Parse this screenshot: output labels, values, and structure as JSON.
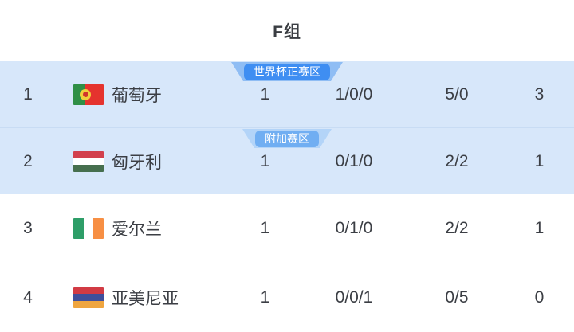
{
  "title": "F组",
  "colors": {
    "page_background": "#ffffff",
    "qualified_row_background": "#d7e7fa",
    "row_divider": "#c8dcf4",
    "text": "#3b3e44",
    "badge_world_cup_inner": "#3f8ef2",
    "badge_world_cup_outer": "#8fbdf4",
    "badge_playoff_inner": "#70aef2",
    "badge_playoff_outer": "#b3d4f8"
  },
  "table": {
    "rows": [
      {
        "rank": "1",
        "team": "葡萄牙",
        "flag": {
          "name": "portugal-flag",
          "orientation": "vertical",
          "stripes": [
            {
              "color": "#2f8f46",
              "fraction": 0.4
            },
            {
              "color": "#e5332e",
              "fraction": 0.6
            }
          ],
          "emblem": {
            "outer": "#f0cf3c",
            "inner": "#d0342c",
            "position": 0.4
          }
        },
        "played": "1",
        "record": "1/0/0",
        "goals": "5/0",
        "points": "3",
        "background": "#d7e7fa",
        "height": 83,
        "divider_top": false,
        "zone_badge": {
          "label": "世界杯正赛区",
          "inner_color": "#3f8ef2",
          "outer_color": "#8fbdf4"
        }
      },
      {
        "rank": "2",
        "team": "匈牙利",
        "flag": {
          "name": "hungary-flag",
          "orientation": "horizontal",
          "stripes": [
            {
              "color": "#d2404d",
              "fraction": 0.3333
            },
            {
              "color": "#ffffff",
              "fraction": 0.3333
            },
            {
              "color": "#466f4e",
              "fraction": 0.3334
            }
          ]
        },
        "played": "1",
        "record": "0/1/0",
        "goals": "2/2",
        "points": "1",
        "background": "#d7e7fa",
        "height": 84,
        "divider_top": true,
        "zone_badge": {
          "label": "附加赛区",
          "inner_color": "#70aef2",
          "outer_color": "#b3d4f8"
        }
      },
      {
        "rank": "3",
        "team": "爱尔兰",
        "flag": {
          "name": "ireland-flag",
          "orientation": "vertical",
          "stripes": [
            {
              "color": "#2e9e68",
              "fraction": 0.3333
            },
            {
              "color": "#ffffff",
              "fraction": 0.3333
            },
            {
              "color": "#f78f44",
              "fraction": 0.3334
            }
          ]
        },
        "played": "1",
        "record": "0/1/0",
        "goals": "2/2",
        "points": "1",
        "background": "#ffffff",
        "height": 86,
        "divider_top": false,
        "zone_badge": null
      },
      {
        "rank": "4",
        "team": "亚美尼亚",
        "flag": {
          "name": "armenia-flag",
          "orientation": "horizontal",
          "stripes": [
            {
              "color": "#d23b44",
              "fraction": 0.3333
            },
            {
              "color": "#3f4f9c",
              "fraction": 0.3333
            },
            {
              "color": "#efa53f",
              "fraction": 0.3334
            }
          ]
        },
        "played": "1",
        "record": "0/0/1",
        "goals": "0/5",
        "points": "0",
        "background": "#ffffff",
        "height": 87,
        "divider_top": false,
        "zone_badge": null
      }
    ]
  }
}
